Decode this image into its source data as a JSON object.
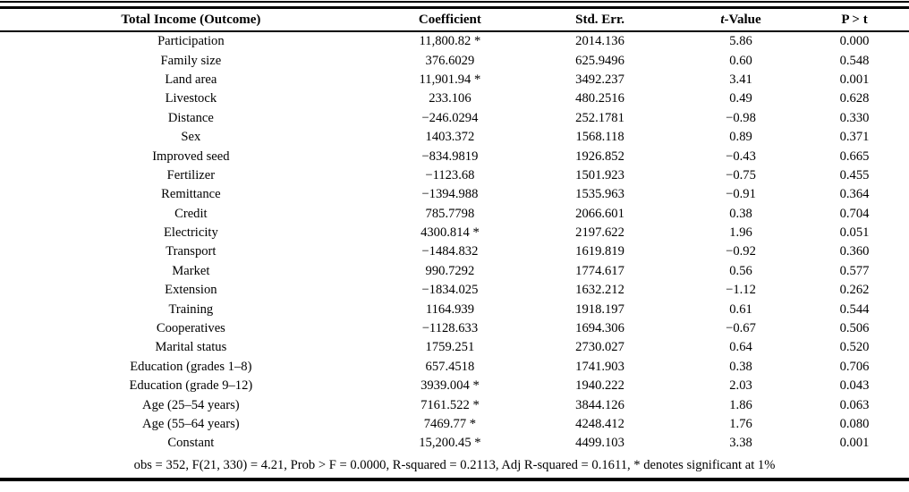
{
  "table": {
    "headers": {
      "outcome": "Total Income (Outcome)",
      "coefficient": "Coefficient",
      "std_err": "Std. Err.",
      "t_value_italic": "t",
      "t_value_rest": "-Value",
      "p_value": "P > t"
    },
    "rows": [
      [
        "Participation",
        "11,800.82 *",
        "2014.136",
        "5.86",
        "0.000"
      ],
      [
        "Family size",
        "376.6029",
        "625.9496",
        "0.60",
        "0.548"
      ],
      [
        "Land area",
        "11,901.94 *",
        "3492.237",
        "3.41",
        "0.001"
      ],
      [
        "Livestock",
        "233.106",
        "480.2516",
        "0.49",
        "0.628"
      ],
      [
        "Distance",
        "−246.0294",
        "252.1781",
        "−0.98",
        "0.330"
      ],
      [
        "Sex",
        "1403.372",
        "1568.118",
        "0.89",
        "0.371"
      ],
      [
        "Improved seed",
        "−834.9819",
        "1926.852",
        "−0.43",
        "0.665"
      ],
      [
        "Fertilizer",
        "−1123.68",
        "1501.923",
        "−0.75",
        "0.455"
      ],
      [
        "Remittance",
        "−1394.988",
        "1535.963",
        "−0.91",
        "0.364"
      ],
      [
        "Credit",
        "785.7798",
        "2066.601",
        "0.38",
        "0.704"
      ],
      [
        "Electricity",
        "4300.814 *",
        "2197.622",
        "1.96",
        "0.051"
      ],
      [
        "Transport",
        "−1484.832",
        "1619.819",
        "−0.92",
        "0.360"
      ],
      [
        "Market",
        "990.7292",
        "1774.617",
        "0.56",
        "0.577"
      ],
      [
        "Extension",
        "−1834.025",
        "1632.212",
        "−1.12",
        "0.262"
      ],
      [
        "Training",
        "1164.939",
        "1918.197",
        "0.61",
        "0.544"
      ],
      [
        "Cooperatives",
        "−1128.633",
        "1694.306",
        "−0.67",
        "0.506"
      ],
      [
        "Marital status",
        "1759.251",
        "2730.027",
        "0.64",
        "0.520"
      ],
      [
        "Education (grades 1–8)",
        "657.4518",
        "1741.903",
        "0.38",
        "0.706"
      ],
      [
        "Education (grade 9–12)",
        "3939.004 *",
        "1940.222",
        "2.03",
        "0.043"
      ],
      [
        "Age (25–54 years)",
        "7161.522 *",
        "3844.126",
        "1.86",
        "0.063"
      ],
      [
        "Age (55–64 years)",
        "7469.77 *",
        "4248.412",
        "1.76",
        "0.080"
      ],
      [
        "Constant",
        "15,200.45 *",
        "4499.103",
        "3.38",
        "0.001"
      ]
    ],
    "footnote": "obs = 352, F(21, 330) = 4.21, Prob > F = 0.0000, R-squared = 0.2113, Adj R-squared = 0.1611, * denotes significant at 1%"
  }
}
